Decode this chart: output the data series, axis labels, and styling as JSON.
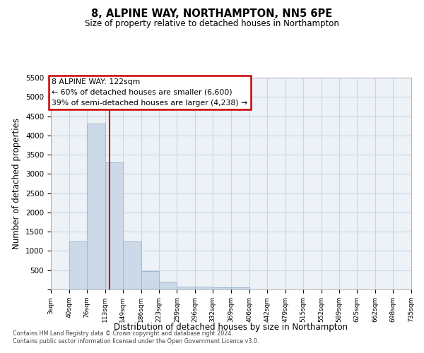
{
  "title": "8, ALPINE WAY, NORTHAMPTON, NN5 6PE",
  "subtitle": "Size of property relative to detached houses in Northampton",
  "xlabel": "Distribution of detached houses by size in Northampton",
  "ylabel": "Number of detached properties",
  "bar_color": "#ccd9e8",
  "bar_edge_color": "#a0b8d0",
  "grid_color": "#c8d8e8",
  "background_color": "#edf2f7",
  "vline_x": 122,
  "vline_color": "#cc0000",
  "annotation_text": "8 ALPINE WAY: 122sqm\n← 60% of detached houses are smaller (6,600)\n39% of semi-detached houses are larger (4,238) →",
  "footnote": "Contains HM Land Registry data © Crown copyright and database right 2024.\nContains public sector information licensed under the Open Government Licence v3.0.",
  "bin_edges": [
    3,
    40,
    76,
    113,
    149,
    186,
    223,
    259,
    296,
    332,
    369,
    406,
    442,
    479,
    515,
    552,
    589,
    625,
    662,
    698,
    735
  ],
  "bar_heights": [
    0,
    1250,
    4300,
    3300,
    1250,
    480,
    200,
    80,
    80,
    50,
    50,
    0,
    0,
    0,
    0,
    0,
    0,
    0,
    0,
    0
  ],
  "ylim": [
    0,
    5500
  ],
  "yticks": [
    0,
    500,
    1000,
    1500,
    2000,
    2500,
    3000,
    3500,
    4000,
    4500,
    5000,
    5500
  ],
  "tick_labels": [
    "3sqm",
    "40sqm",
    "76sqm",
    "113sqm",
    "149sqm",
    "186sqm",
    "223sqm",
    "259sqm",
    "296sqm",
    "332sqm",
    "369sqm",
    "406sqm",
    "442sqm",
    "479sqm",
    "515sqm",
    "552sqm",
    "589sqm",
    "625sqm",
    "662sqm",
    "698sqm",
    "735sqm"
  ]
}
